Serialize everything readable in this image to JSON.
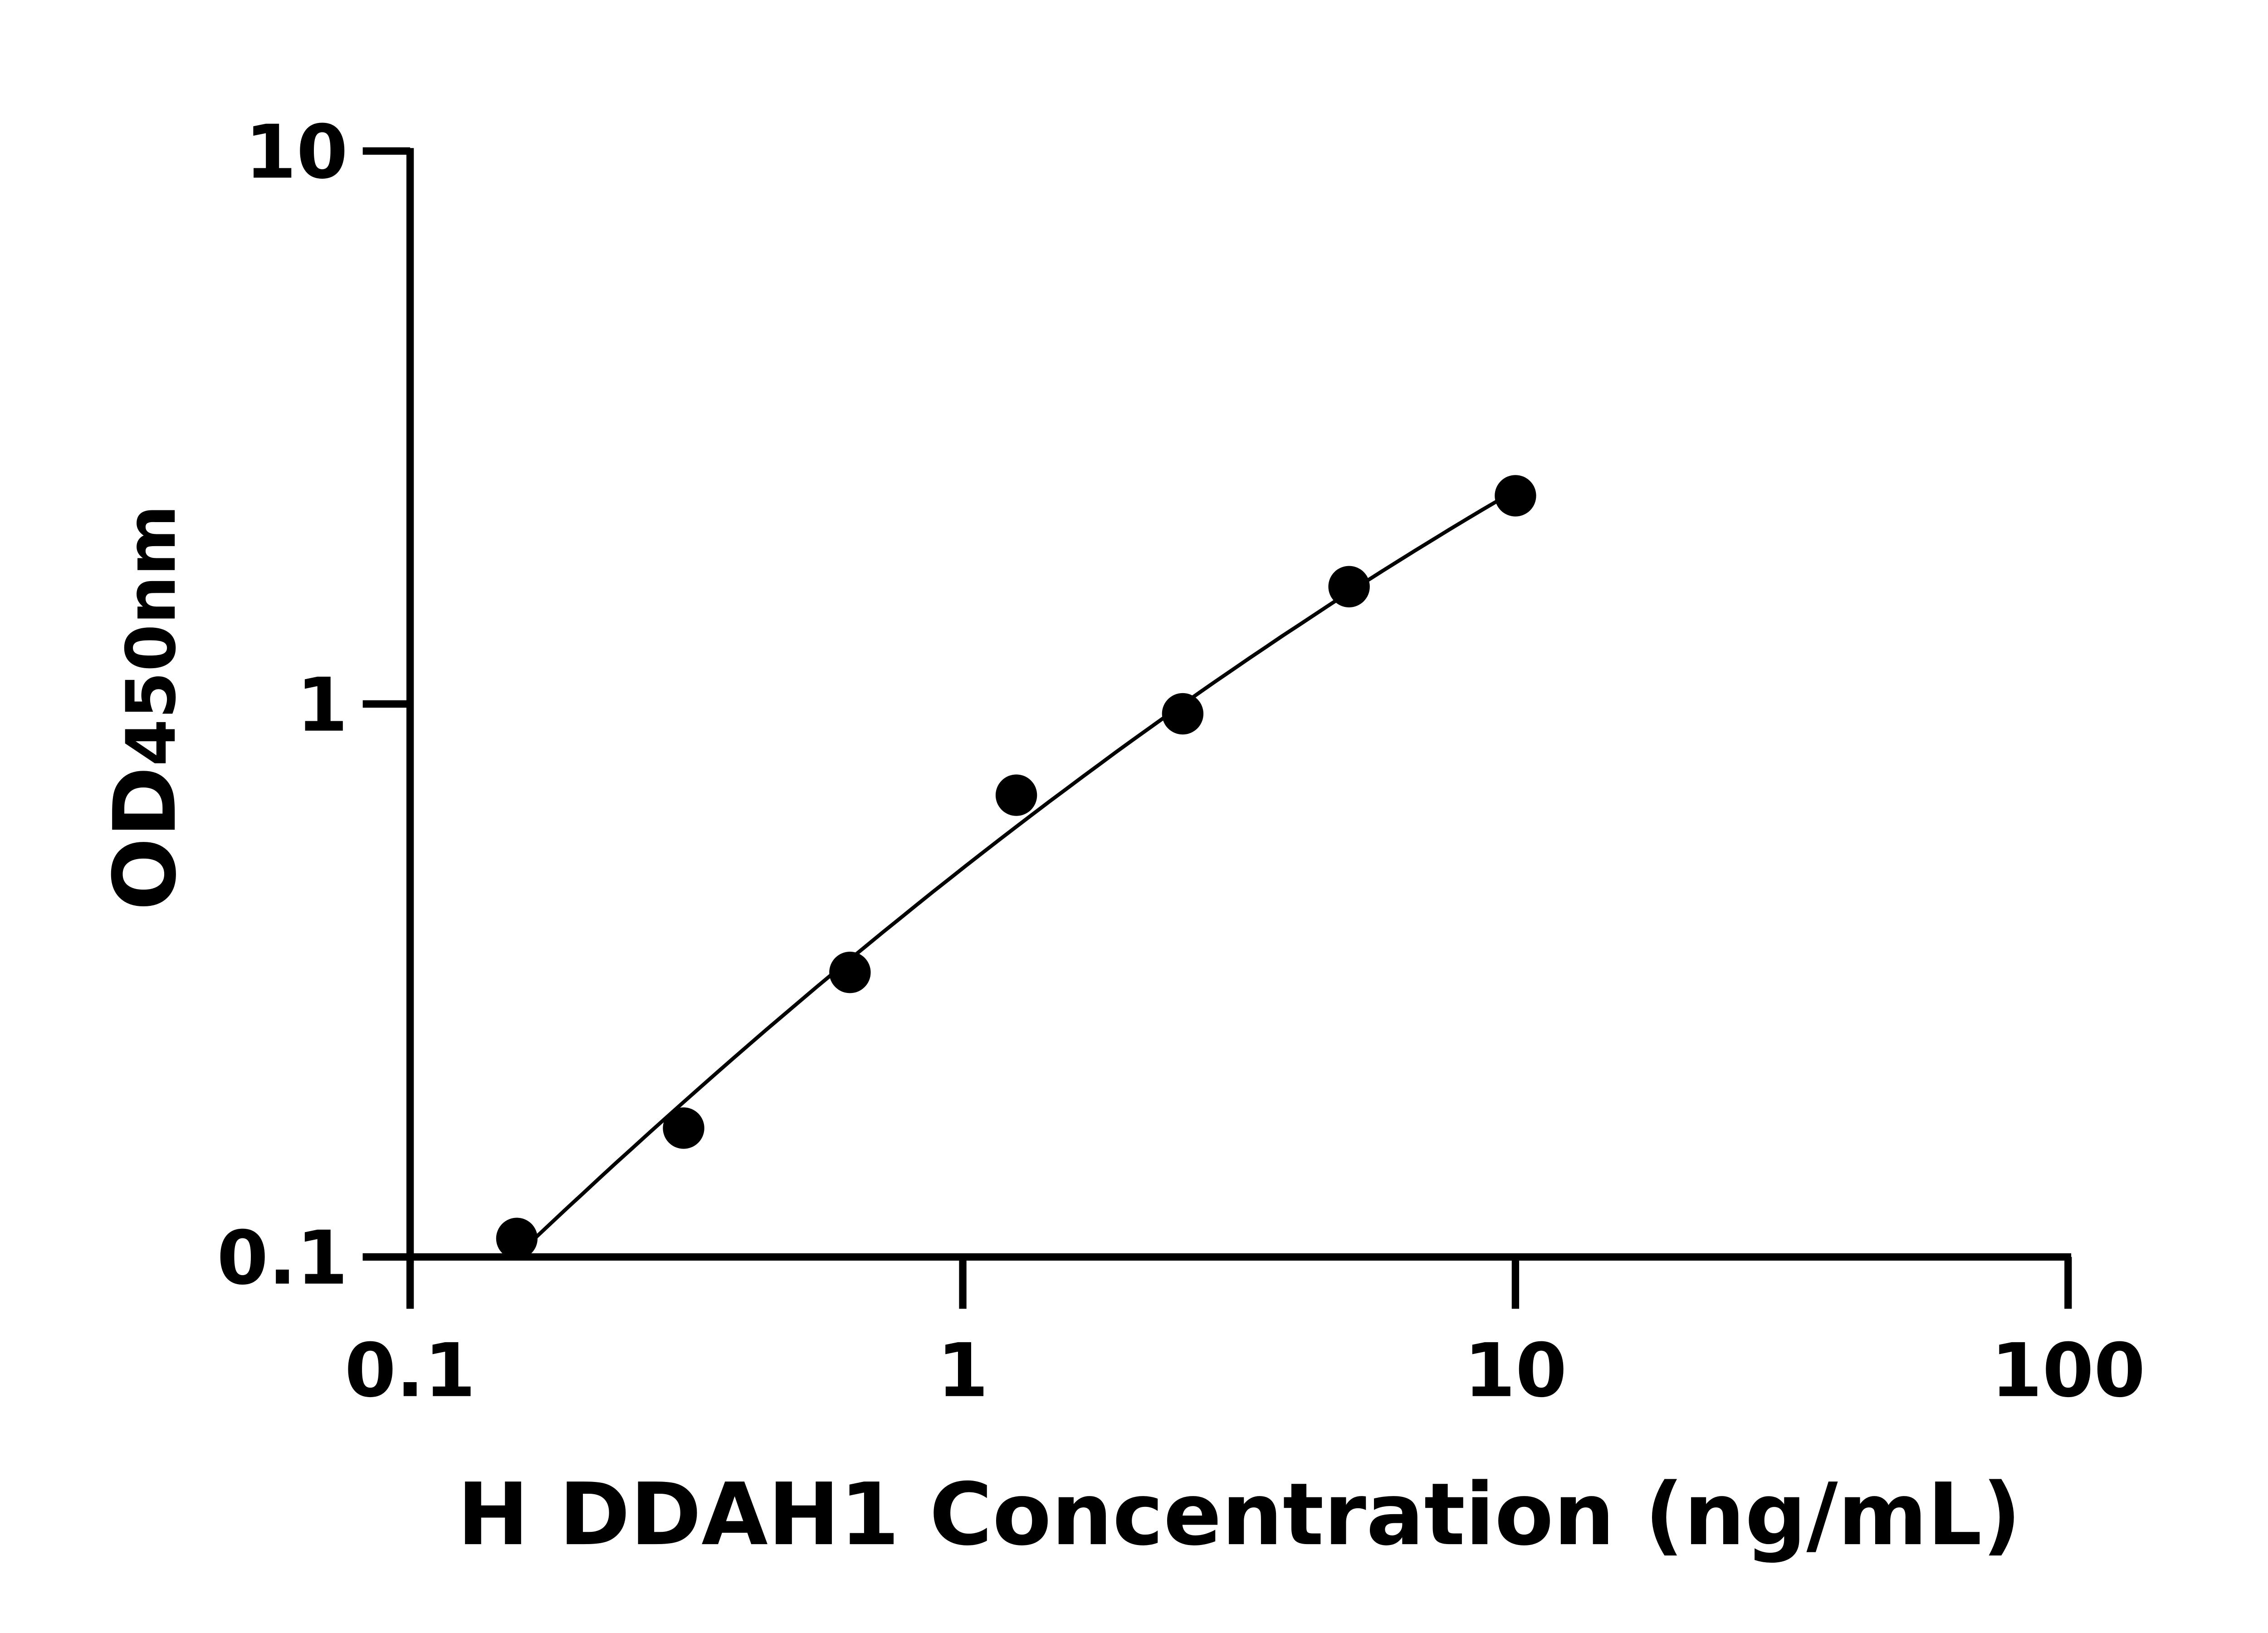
{
  "chart_data": {
    "type": "scatter",
    "title": "",
    "xlabel": "H DDAH1 Concentration (ng/mL)",
    "ylabel": "OD",
    "ylabel_subscript": "450nm",
    "x_scale": "log",
    "y_scale": "log",
    "xlim": [
      0.1,
      100
    ],
    "ylim": [
      0.1,
      10
    ],
    "x_ticks": [
      "0.1",
      "1",
      "10",
      "100"
    ],
    "y_ticks": [
      "0.1",
      "1",
      "10"
    ],
    "grid": false,
    "legend": "none",
    "marker_color": "#000000",
    "curve": "fitted line",
    "series": [
      {
        "x": [
          0.156,
          0.3125,
          0.625,
          1.25,
          2.5,
          5,
          10
        ],
        "y": [
          0.108,
          0.171,
          0.327,
          0.684,
          0.96,
          1.63,
          2.38
        ]
      }
    ]
  }
}
